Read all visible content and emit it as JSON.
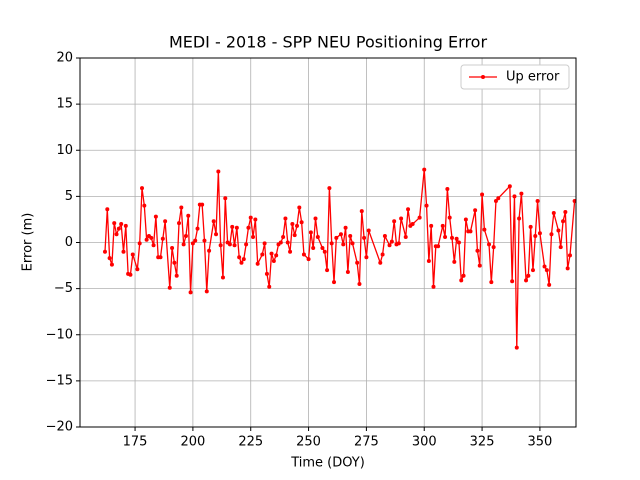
{
  "chart_data": {
    "type": "line",
    "title": "MEDI - 2018 - SPP NEU Positioning Error",
    "xlabel": "Time (DOY)",
    "ylabel": "Error (m)",
    "x": [
      162,
      163,
      164,
      165,
      166,
      167,
      168,
      169,
      170,
      171,
      172,
      173,
      174,
      176,
      177,
      178,
      179,
      180,
      181,
      182,
      183,
      184,
      185,
      186,
      187,
      188,
      190,
      191,
      192,
      193,
      194,
      195,
      196,
      197,
      198,
      199,
      200,
      201,
      202,
      203,
      204,
      205,
      206,
      207,
      209,
      210,
      211,
      212,
      213,
      214,
      215,
      216,
      217,
      218,
      219,
      220,
      221,
      222,
      223,
      224,
      225,
      226,
      227,
      228,
      230,
      231,
      232,
      233,
      234,
      235,
      236,
      237,
      238,
      239,
      240,
      241,
      242,
      243,
      244,
      245,
      246,
      247,
      248,
      250,
      251,
      252,
      253,
      254,
      256,
      257,
      258,
      259,
      260,
      261,
      262,
      264,
      265,
      266,
      267,
      268,
      269,
      271,
      272,
      273,
      274,
      275,
      276,
      281,
      282,
      283,
      285,
      286,
      287,
      288,
      289,
      290,
      292,
      293,
      294,
      295,
      298,
      300,
      301,
      302,
      303,
      304,
      305,
      306,
      308,
      309,
      310,
      311,
      312,
      313,
      314,
      315,
      316,
      317,
      318,
      319,
      320,
      322,
      323,
      324,
      325,
      326,
      328,
      329,
      330,
      331,
      332,
      337,
      338,
      339,
      340,
      341,
      342,
      344,
      345,
      346,
      347,
      348,
      349,
      350,
      352,
      353,
      354,
      355,
      356,
      358,
      359,
      360,
      361,
      362,
      363,
      365
    ],
    "series": [
      {
        "name": "Up error",
        "color": "#ff0000",
        "values": [
          -1.0,
          3.6,
          -1.7,
          -2.4,
          2.1,
          0.9,
          1.5,
          2.0,
          -1.0,
          1.8,
          -3.4,
          -3.5,
          -1.3,
          -2.9,
          -0.1,
          5.9,
          4.0,
          0.3,
          0.7,
          0.5,
          -0.3,
          2.8,
          -1.6,
          -1.6,
          0.4,
          2.3,
          -4.9,
          -0.6,
          -2.2,
          -3.6,
          2.1,
          3.8,
          -0.2,
          0.7,
          2.9,
          -5.4,
          -0.1,
          0.2,
          1.5,
          4.1,
          4.1,
          0.2,
          -5.3,
          -0.9,
          2.3,
          0.9,
          7.7,
          -0.3,
          -3.8,
          4.8,
          0.0,
          -0.2,
          1.7,
          -0.3,
          1.6,
          -1.6,
          -2.2,
          -1.8,
          -0.2,
          1.6,
          2.7,
          0.6,
          2.5,
          -2.3,
          -1.3,
          -0.1,
          -3.4,
          -4.8,
          -1.2,
          -2.0,
          -1.4,
          -0.2,
          0.0,
          0.6,
          2.6,
          0.0,
          -1.0,
          2.0,
          0.8,
          1.8,
          3.8,
          2.2,
          -1.3,
          -1.8,
          1.1,
          -0.6,
          2.6,
          0.6,
          -0.6,
          -1.0,
          -3.0,
          5.9,
          -0.1,
          -4.3,
          0.5,
          0.9,
          -0.2,
          1.6,
          -3.2,
          0.7,
          -0.1,
          -2.2,
          -4.5,
          3.4,
          0.5,
          -1.6,
          1.3,
          -2.2,
          -1.3,
          0.7,
          -0.3,
          0.1,
          2.3,
          -0.2,
          -0.1,
          2.6,
          0.6,
          3.6,
          1.8,
          2.0,
          2.7,
          7.9,
          4.0,
          -2.0,
          1.8,
          -4.8,
          -0.4,
          -0.4,
          1.8,
          0.6,
          5.8,
          2.7,
          0.5,
          -2.1,
          0.4,
          0.0,
          -4.1,
          -3.6,
          2.5,
          1.2,
          1.2,
          3.5,
          -0.9,
          -2.5,
          5.2,
          1.4,
          -0.2,
          -4.3,
          -0.5,
          4.5,
          4.8,
          6.1,
          -4.2,
          5.0,
          -11.4,
          2.6,
          5.3,
          -4.1,
          -3.6,
          1.7,
          -3.0,
          0.7,
          4.5,
          1.0,
          -2.6,
          -3.0,
          -4.6,
          0.9,
          3.2,
          1.3,
          -0.5,
          2.3,
          3.3,
          -2.8,
          -1.4,
          4.5
        ]
      }
    ],
    "xlim": [
      151.2,
      365.6
    ],
    "xticks": [
      175,
      200,
      225,
      250,
      275,
      300,
      325,
      350
    ],
    "ylim": [
      -20,
      20
    ],
    "yticks": [
      {
        "value": -20,
        "label": "−20"
      },
      {
        "value": -15,
        "label": "−15"
      },
      {
        "value": -10,
        "label": "−10"
      },
      {
        "value": -5,
        "label": "−5"
      },
      0,
      5,
      10,
      15,
      20
    ],
    "grid": true,
    "legend": "upper right"
  }
}
